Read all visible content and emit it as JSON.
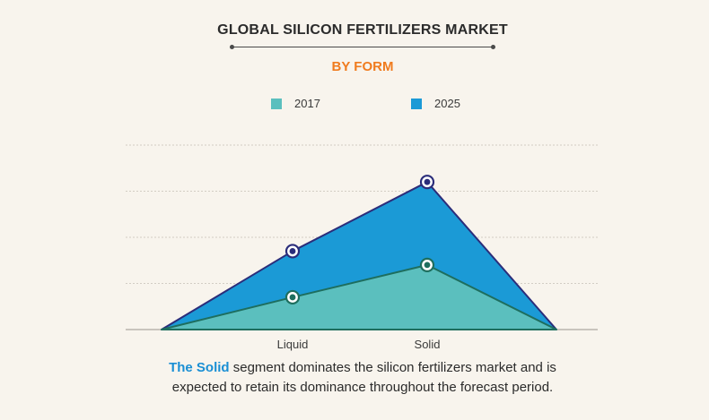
{
  "title": "GLOBAL SILICON FERTILIZERS MARKET",
  "subtitle": "BY FORM",
  "colors": {
    "series_2017": "#5bbfbe",
    "series_2025": "#1b9ad6",
    "title_accent": "#f07b1e",
    "highlight": "#1a8fd4"
  },
  "chart_data": {
    "type": "area",
    "categories": [
      "Liquid",
      "Solid"
    ],
    "series": [
      {
        "name": "2017",
        "values": [
          1.4,
          2.8
        ]
      },
      {
        "name": "2025",
        "values": [
          3.4,
          6.4
        ]
      }
    ],
    "ylim": [
      0,
      8
    ],
    "grid": true,
    "legend_position": "top-center",
    "y_tick_labels_shown": false
  },
  "caption": {
    "highlight": "The Solid",
    "line1_rest": " segment dominates the silicon fertilizers market and is",
    "line2": "expected to retain its dominance throughout the forecast period."
  }
}
